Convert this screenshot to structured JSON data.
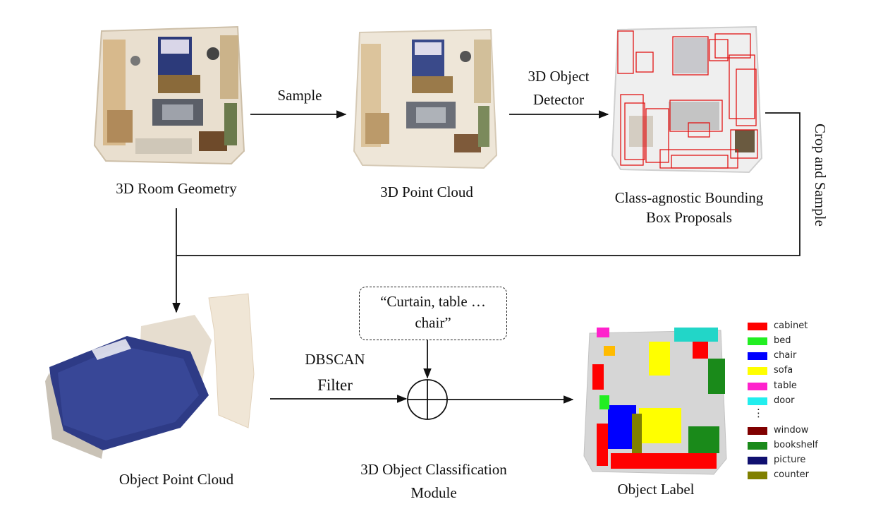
{
  "labels": {
    "room_geometry": "3D Room Geometry",
    "point_cloud": "3D Point Cloud",
    "proposals_line1": "Class-agnostic Bounding",
    "proposals_line2": "Box Proposals",
    "object_point_cloud": "Object Point Cloud",
    "classification_line1": "3D Object Classification",
    "classification_line2": "Module",
    "object_label": "Object Label"
  },
  "edges": {
    "sample": "Sample",
    "detector_line1": "3D Object",
    "detector_line2": "Detector",
    "crop_and_sample": "Crop and Sample",
    "dbscan": "DBSCAN",
    "filter": "Filter"
  },
  "prompt": {
    "line1": "“Curtain, table …",
    "line2": "chair”"
  },
  "legend": {
    "items": [
      {
        "name": "cabinet",
        "color": "#ff0000"
      },
      {
        "name": "bed",
        "color": "#22ee22"
      },
      {
        "name": "chair",
        "color": "#0000ff"
      },
      {
        "name": "sofa",
        "color": "#ffff00"
      },
      {
        "name": "table",
        "color": "#ff22cc"
      },
      {
        "name": "door",
        "color": "#22eeee"
      },
      {
        "name": "window",
        "color": "#800000"
      },
      {
        "name": "bookshelf",
        "color": "#1a8a1a"
      },
      {
        "name": "picture",
        "color": "#101070"
      },
      {
        "name": "counter",
        "color": "#808000"
      }
    ],
    "ellipsis": "⋮"
  }
}
